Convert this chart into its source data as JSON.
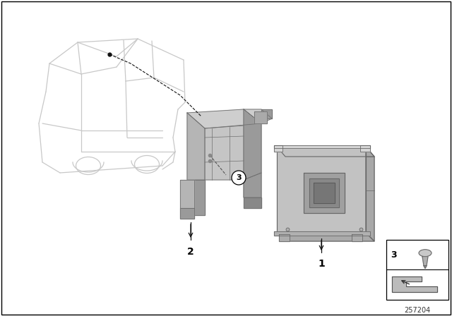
{
  "bg_color": "#ffffff",
  "part_number": "257204",
  "car_color": "#cccccc",
  "car_edge": "#bbbbbb",
  "part_fill": "#b8b8b8",
  "part_edge": "#888888",
  "part_dark": "#999999",
  "part_light": "#d0d0d0",
  "fig_width": 6.4,
  "fig_height": 4.48,
  "dpi": 100
}
